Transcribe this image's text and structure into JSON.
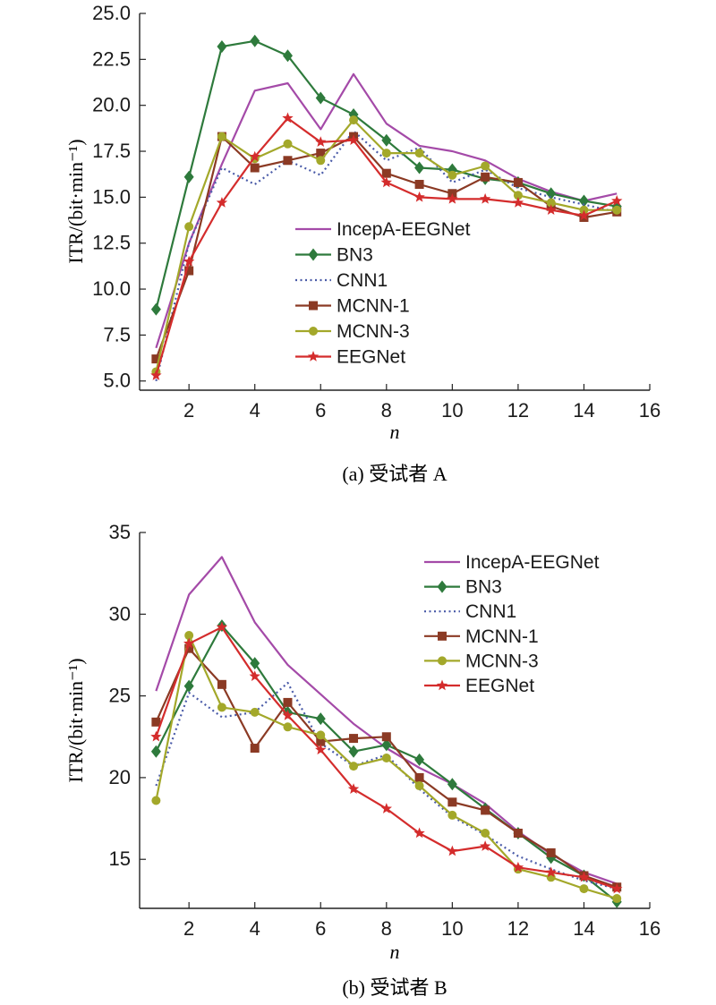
{
  "chart_data": [
    {
      "type": "line",
      "caption": "(a) 受试者 A",
      "xlabel": "n",
      "ylabel": "ITR/(bit·min⁻¹)",
      "xlim": [
        0.5,
        16
      ],
      "ylim": [
        4.5,
        25
      ],
      "xticks": [
        2,
        4,
        6,
        8,
        10,
        12,
        14,
        16
      ],
      "yticks": [
        5.0,
        7.5,
        10.0,
        12.5,
        15.0,
        17.5,
        20.0,
        22.5,
        25.0
      ],
      "ytick_labels": [
        "5.0",
        "7.5",
        "10.0",
        "12.5",
        "15.0",
        "17.5",
        "20.0",
        "22.5",
        "25.0"
      ],
      "legend_position": "center",
      "x": [
        1,
        2,
        3,
        4,
        5,
        6,
        7,
        8,
        9,
        10,
        11,
        12,
        13,
        14,
        15
      ],
      "series": [
        {
          "name": "IncepA-EEGNet",
          "color": "#a44aa8",
          "marker": "none",
          "dash": "none",
          "values": [
            6.8,
            12.5,
            16.8,
            20.8,
            21.2,
            18.7,
            21.7,
            19.0,
            17.8,
            17.5,
            17.0,
            16.0,
            15.3,
            14.8,
            15.2
          ]
        },
        {
          "name": "BN3",
          "color": "#2e7a3c",
          "marker": "diamond",
          "dash": "none",
          "values": [
            8.9,
            16.1,
            23.2,
            23.5,
            22.7,
            20.4,
            19.5,
            18.1,
            16.6,
            16.5,
            16.0,
            15.8,
            15.2,
            14.8,
            14.5
          ]
        },
        {
          "name": "CNN1",
          "color": "#4a5ba8",
          "marker": "none",
          "dash": "dot",
          "values": [
            5.0,
            12.5,
            16.6,
            15.7,
            17.0,
            16.2,
            18.6,
            17.0,
            17.7,
            15.8,
            16.5,
            15.5,
            15.0,
            14.6,
            14.2
          ]
        },
        {
          "name": "MCNN-1",
          "color": "#8b3a24",
          "marker": "square",
          "dash": "none",
          "values": [
            6.2,
            11.0,
            18.3,
            16.6,
            17.0,
            17.4,
            18.3,
            16.3,
            15.7,
            15.2,
            16.1,
            15.8,
            14.5,
            13.9,
            14.2
          ]
        },
        {
          "name": "MCNN-3",
          "color": "#a3a82a",
          "marker": "circle",
          "dash": "none",
          "values": [
            5.5,
            13.4,
            18.3,
            17.1,
            17.9,
            17.0,
            19.2,
            17.4,
            17.4,
            16.2,
            16.7,
            15.1,
            14.7,
            14.3,
            14.3
          ]
        },
        {
          "name": "EEGNet",
          "color": "#d42c2c",
          "marker": "star",
          "dash": "none",
          "values": [
            5.3,
            11.5,
            14.7,
            17.2,
            19.3,
            18.0,
            18.1,
            15.8,
            15.0,
            14.9,
            14.9,
            14.7,
            14.3,
            14.0,
            14.8
          ]
        }
      ]
    },
    {
      "type": "line",
      "caption": "(b) 受试者 B",
      "xlabel": "n",
      "ylabel": "ITR/(bit·min⁻¹)",
      "xlim": [
        0.5,
        16
      ],
      "ylim": [
        12,
        35
      ],
      "xticks": [
        2,
        4,
        6,
        8,
        10,
        12,
        14,
        16
      ],
      "yticks": [
        15,
        20,
        25,
        30,
        35
      ],
      "ytick_labels": [
        "15",
        "20",
        "25",
        "30",
        "35"
      ],
      "legend_position": "top-right",
      "x": [
        1,
        2,
        3,
        4,
        5,
        6,
        7,
        8,
        9,
        10,
        11,
        12,
        13,
        14,
        15
      ],
      "series": [
        {
          "name": "IncepA-EEGNet",
          "color": "#a44aa8",
          "marker": "none",
          "dash": "none",
          "values": [
            25.3,
            31.2,
            33.5,
            29.5,
            26.9,
            25.1,
            23.3,
            21.8,
            20.6,
            19.6,
            18.4,
            16.7,
            15.3,
            14.2,
            13.5
          ]
        },
        {
          "name": "BN3",
          "color": "#2e7a3c",
          "marker": "diamond",
          "dash": "none",
          "values": [
            21.6,
            25.6,
            29.3,
            27.0,
            24.0,
            23.6,
            21.6,
            22.0,
            21.1,
            19.6,
            18.1,
            16.6,
            15.1,
            14.0,
            12.4
          ]
        },
        {
          "name": "CNN1",
          "color": "#4a5ba8",
          "marker": "none",
          "dash": "dot",
          "values": [
            19.5,
            25.2,
            23.7,
            24.0,
            25.8,
            22.1,
            20.7,
            21.4,
            19.3,
            17.6,
            16.5,
            15.2,
            14.4,
            13.7,
            13.2
          ]
        },
        {
          "name": "MCNN-1",
          "color": "#8b3a24",
          "marker": "square",
          "dash": "none",
          "values": [
            23.4,
            27.9,
            25.7,
            21.8,
            24.6,
            22.2,
            22.4,
            22.5,
            20.0,
            18.5,
            18.0,
            16.6,
            15.4,
            14.0,
            13.3
          ]
        },
        {
          "name": "MCNN-3",
          "color": "#a3a82a",
          "marker": "circle",
          "dash": "none",
          "values": [
            18.6,
            28.7,
            24.3,
            24.0,
            23.1,
            22.6,
            20.7,
            21.2,
            19.5,
            17.7,
            16.6,
            14.4,
            13.9,
            13.2,
            12.6
          ]
        },
        {
          "name": "EEGNet",
          "color": "#d42c2c",
          "marker": "star",
          "dash": "none",
          "values": [
            22.5,
            28.2,
            29.2,
            26.2,
            23.8,
            21.7,
            19.3,
            18.1,
            16.6,
            15.5,
            15.8,
            14.5,
            14.2,
            13.9,
            13.2
          ]
        }
      ]
    }
  ]
}
